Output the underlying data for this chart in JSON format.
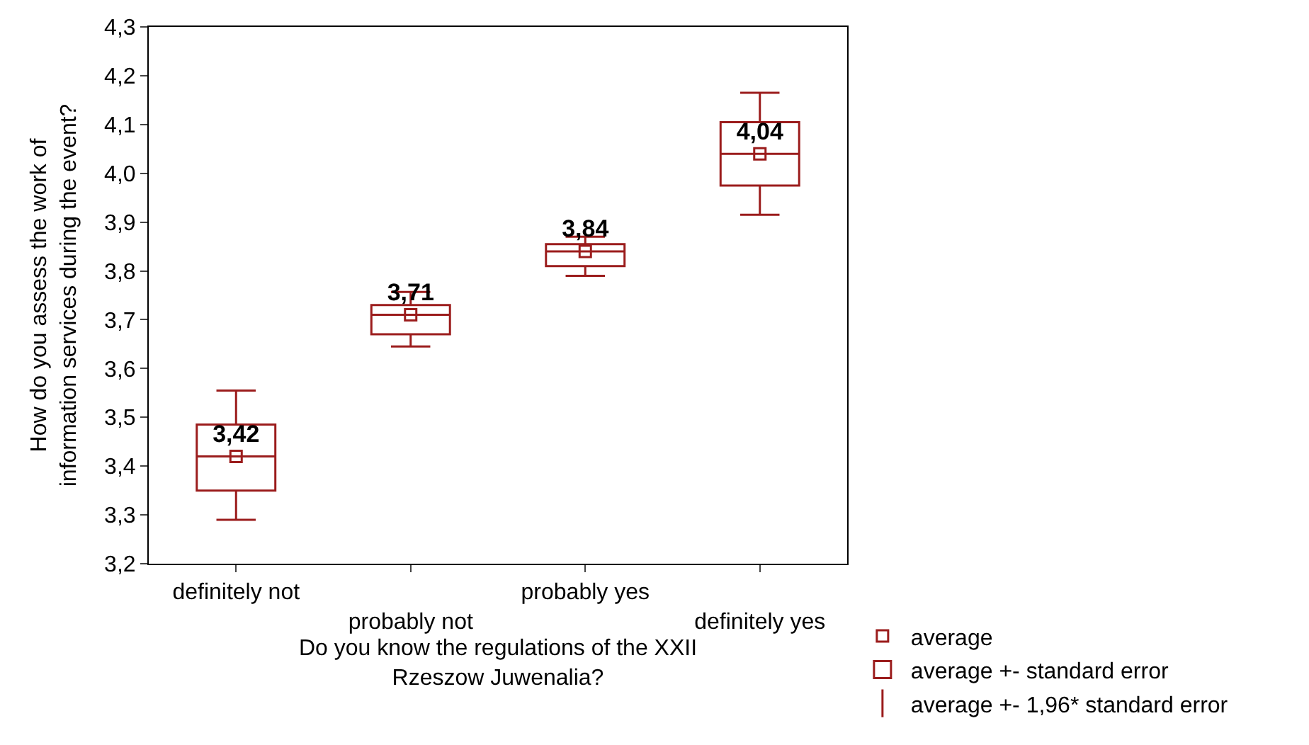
{
  "chart_data": {
    "type": "box",
    "xlabel": "Do you know the regulations of the XXII Rzeszow Juwenalia?",
    "ylabel": "How do you assess the work of information services during the event?",
    "categories": [
      "definitely not",
      "probably not",
      "probably yes",
      "definitely yes"
    ],
    "ylim": [
      3.2,
      4.3
    ],
    "yticks": [
      {
        "value": 3.2,
        "label": "3,2"
      },
      {
        "value": 3.3,
        "label": "3,3"
      },
      {
        "value": 3.4,
        "label": "3,4"
      },
      {
        "value": 3.5,
        "label": "3,5"
      },
      {
        "value": 3.6,
        "label": "3,6"
      },
      {
        "value": 3.7,
        "label": "3,7"
      },
      {
        "value": 3.8,
        "label": "3,8"
      },
      {
        "value": 3.9,
        "label": "3,9"
      },
      {
        "value": 4.0,
        "label": "4,0"
      },
      {
        "value": 4.1,
        "label": "4,1"
      },
      {
        "value": 4.2,
        "label": "4,2"
      },
      {
        "value": 4.3,
        "label": "4,3"
      }
    ],
    "series": [
      {
        "name": "average",
        "type": "scatter",
        "marker": "square",
        "color": "#9b1c1c",
        "x": [
          "definitely not",
          "probably not",
          "probably yes",
          "definitely yes"
        ],
        "values": [
          3.42,
          3.71,
          3.84,
          4.04
        ],
        "value_labels": [
          "3,42",
          "3,71",
          "3,84",
          "4,04"
        ]
      },
      {
        "name": "average +- standard error",
        "color": "#9b1c1c",
        "boxes": [
          {
            "low": 3.29,
            "q1": 3.35,
            "median": 3.42,
            "q3": 3.485,
            "high": 3.555
          },
          {
            "low": 3.645,
            "q1": 3.67,
            "median": 3.71,
            "q3": 3.73,
            "high": 3.757
          },
          {
            "low": 3.79,
            "q1": 3.81,
            "median": 3.84,
            "q3": 3.855,
            "high": 3.87
          },
          {
            "low": 3.915,
            "q1": 3.975,
            "median": 4.04,
            "q3": 4.105,
            "high": 4.165
          }
        ]
      }
    ],
    "annotations": [
      "average +- 1,96* standard error"
    ],
    "legend": "bottom right"
  }
}
